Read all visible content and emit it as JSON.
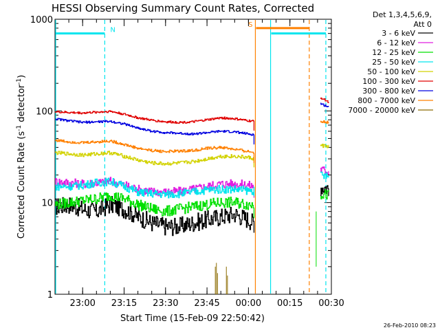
{
  "chart_data": {
    "type": "line",
    "title": "HESSI Observing Summary Count Rates, Corrected",
    "xlabel": "Start Time (15-Feb-09 22:50:42)",
    "ylabel_parts": [
      "Corrected Count Rate (s",
      "-1",
      " detector",
      "-1",
      ")"
    ],
    "ylim": [
      1,
      1000
    ],
    "y_scale": "log",
    "xlim": [
      0,
      100
    ],
    "x_unit": "minutes since 22:50",
    "x_ticks": [
      {
        "x": 10,
        "label": "23:00"
      },
      {
        "x": 25,
        "label": "23:15"
      },
      {
        "x": 40,
        "label": "23:30"
      },
      {
        "x": 55,
        "label": "23:45"
      },
      {
        "x": 70,
        "label": "00:00"
      },
      {
        "x": 85,
        "label": "00:15"
      },
      {
        "x": 100,
        "label": "00:30"
      }
    ],
    "y_ticks": [
      {
        "y": 1,
        "label": "1"
      },
      {
        "y": 10,
        "label": "10"
      },
      {
        "y": 100,
        "label": "100"
      },
      {
        "y": 1000,
        "label": "1000"
      }
    ],
    "legend_header": [
      "Det 1,3,4,5,6,9,",
      "Att 0"
    ],
    "series": [
      {
        "name": "3 - 6 keV",
        "color": "#000000",
        "seg1_x": [
          0,
          5,
          10,
          15,
          20,
          25,
          30,
          35,
          40,
          45,
          50,
          55,
          60,
          65,
          70,
          72
        ],
        "seg1_y": [
          9,
          9.5,
          8.5,
          8,
          9.5,
          8.5,
          7,
          6,
          5.5,
          5.5,
          6,
          6.5,
          7,
          7.5,
          6.5,
          6
        ],
        "seg2_x": [
          96,
          99
        ],
        "seg2_y": [
          15,
          14.5
        ],
        "noise": 0.1
      },
      {
        "name": "6 - 12 keV",
        "color": "#e01ee0",
        "seg1_x": [
          0,
          5,
          10,
          15,
          20,
          25,
          30,
          35,
          40,
          45,
          50,
          55,
          60,
          65,
          70,
          72
        ],
        "seg1_y": [
          17,
          16.5,
          16,
          16.5,
          17,
          15.5,
          14,
          13.2,
          13,
          13.2,
          14,
          15,
          16,
          16,
          15.5,
          15
        ],
        "seg2_x": [
          96,
          99
        ],
        "seg2_y": [
          23,
          22
        ],
        "noise": 0.05
      },
      {
        "name": "12 - 25 keV",
        "color": "#00e000",
        "seg1_x": [
          0,
          5,
          10,
          15,
          20,
          25,
          30,
          35,
          40,
          45,
          50,
          55,
          60,
          65,
          70,
          72
        ],
        "seg1_y": [
          9.5,
          10,
          10.5,
          11,
          12,
          11,
          9.5,
          8.5,
          8,
          8.5,
          9,
          9.5,
          10,
          10,
          9.5,
          9.5
        ],
        "seg2_x": [
          96,
          99
        ],
        "seg2_y": [
          12.5,
          12
        ],
        "noise": 0.06
      },
      {
        "name": "25 - 50 keV",
        "color": "#00e5ee",
        "seg1_x": [
          0,
          5,
          10,
          15,
          20,
          25,
          30,
          35,
          40,
          45,
          50,
          55,
          60,
          65,
          70,
          72
        ],
        "seg1_y": [
          15,
          15,
          15.5,
          16.5,
          17,
          15,
          13,
          12.5,
          12.3,
          12.5,
          13,
          13.8,
          14,
          14,
          13.5,
          13.5
        ],
        "seg2_x": [
          96,
          99
        ],
        "seg2_y": [
          20,
          19
        ],
        "noise": 0.045
      },
      {
        "name": "50 - 100 keV",
        "color": "#d2d200",
        "seg1_x": [
          0,
          5,
          10,
          15,
          20,
          25,
          30,
          35,
          40,
          45,
          50,
          55,
          60,
          65,
          70,
          72
        ],
        "seg1_y": [
          35,
          34,
          33,
          34,
          35,
          32,
          29,
          27,
          26.5,
          27,
          28,
          30,
          32,
          32,
          31,
          30
        ],
        "seg2_x": [
          96,
          99
        ],
        "seg2_y": [
          42,
          41
        ],
        "noise": 0.02
      },
      {
        "name": "100 - 300 keV",
        "color": "#e00000",
        "seg1_x": [
          0,
          5,
          10,
          15,
          20,
          25,
          30,
          35,
          40,
          45,
          50,
          55,
          60,
          65,
          70,
          72
        ],
        "seg1_y": [
          98,
          96,
          95,
          97,
          99,
          92,
          84,
          79,
          76,
          75,
          76,
          80,
          84,
          82,
          78,
          77
        ],
        "seg2_x": [
          96,
          99
        ],
        "seg2_y": [
          140,
          125
        ],
        "noise": 0.012
      },
      {
        "name": "300 - 800 keV",
        "color": "#0000e0",
        "seg1_x": [
          0,
          5,
          10,
          15,
          20,
          25,
          30,
          35,
          40,
          45,
          50,
          55,
          60,
          65,
          70,
          72
        ],
        "seg1_y": [
          82,
          78,
          75,
          76,
          77,
          72,
          65,
          60,
          58,
          57,
          56,
          58,
          60,
          59,
          56,
          55
        ],
        "seg2_x": [
          96,
          99
        ],
        "seg2_y": [
          120,
          110
        ],
        "noise": 0.012
      },
      {
        "name": "800 - 7000 keV",
        "color": "#ff8000",
        "seg1_x": [
          0,
          5,
          10,
          15,
          20,
          25,
          30,
          35,
          40,
          45,
          50,
          55,
          60,
          65,
          70,
          72
        ],
        "seg1_y": [
          48,
          46,
          45,
          46,
          47,
          43,
          39,
          37,
          36,
          36.5,
          37,
          39,
          40,
          38,
          36,
          35
        ],
        "seg2_x": [
          96,
          99
        ],
        "seg2_y": [
          78,
          74
        ],
        "noise": 0.015
      },
      {
        "name": "7000 - 20000 keV",
        "color": "#8b6b00",
        "spikes_x": [
          58,
          58.4,
          58.8,
          62,
          62.4
        ],
        "spikes_y": [
          2,
          2.2,
          1.7,
          2,
          1.6
        ]
      }
    ],
    "flags": [
      {
        "label": "N",
        "color": "#00e5ee",
        "style": "bar",
        "x_start": 0,
        "x_end": 18,
        "y": 700
      },
      {
        "label": "",
        "color": "#00e5ee",
        "style": "bar",
        "x_start": 78,
        "x_end": 98,
        "y": 700
      },
      {
        "label": "S",
        "color": "#ff8000",
        "style": "bar",
        "x_start": 72.5,
        "x_end": 92,
        "y": 800
      }
    ],
    "vlines": [
      {
        "x": 0,
        "color": "#00e5ee",
        "style": "solid"
      },
      {
        "x": 18,
        "color": "#00e5ee",
        "style": "dashed"
      },
      {
        "x": 72.5,
        "color": "#ff8000",
        "style": "solid"
      },
      {
        "x": 78,
        "color": "#00e5ee",
        "style": "solid"
      },
      {
        "x": 92,
        "color": "#ff8000",
        "style": "dashed"
      },
      {
        "x": 98,
        "color": "#00e5ee",
        "style": "dashed"
      }
    ],
    "extra_lines": [
      {
        "color": "#00e000",
        "x": [
          94.5,
          94.5
        ],
        "y": [
          2,
          8
        ]
      }
    ],
    "timestamp": "26-Feb-2010 08:23"
  }
}
